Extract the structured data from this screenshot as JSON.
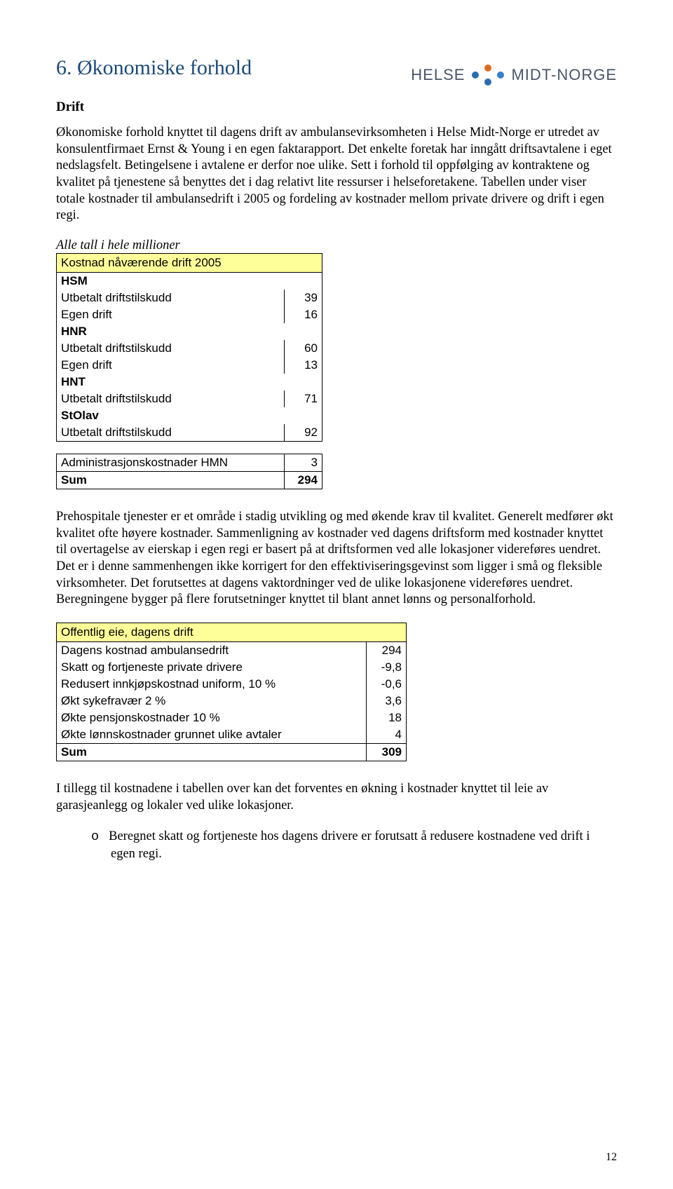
{
  "logo": {
    "left_text": "HELSE",
    "right_text": "MIDT-NORGE",
    "text_color": "#5a6472"
  },
  "colors": {
    "heading": "#1a4a7a",
    "text": "#000000",
    "table_header_bg": "#ffff99",
    "table_border": "#000000",
    "background": "#ffffff"
  },
  "heading": "6. Økonomiske forhold",
  "subheading": "Drift",
  "para1": "Økonomiske forhold knyttet til dagens drift av ambulansevirksomheten i Helse Midt-Norge er utredet av konsulentfirmaet Ernst & Young i en egen faktarapport. Det enkelte foretak har inngått driftsavtalene i eget nedslagsfelt. Betingelsene i avtalene er derfor noe ulike. Sett i forhold til oppfølging av kontraktene og kvalitet på tjenestene så benyttes det i dag relativt lite ressurser i helseforetakene. Tabellen under viser totale kostnader til ambulansedrift i 2005 og fordeling av kostnader mellom private drivere og drift i egen regi.",
  "caption1": "Alle tall i hele millioner",
  "table1": {
    "header": "Kostnad nåværende drift 2005",
    "rows": [
      {
        "type": "section",
        "label": "HSM"
      },
      {
        "type": "data",
        "label": "Utbetalt driftstilskudd",
        "value": "39"
      },
      {
        "type": "data",
        "label": "Egen drift",
        "value": "16"
      },
      {
        "type": "section",
        "label": "HNR"
      },
      {
        "type": "data",
        "label": "Utbetalt driftstilskudd",
        "value": "60"
      },
      {
        "type": "data",
        "label": "Egen drift",
        "value": "13"
      },
      {
        "type": "section",
        "label": "HNT"
      },
      {
        "type": "data",
        "label": "Utbetalt driftstilskudd",
        "value": "71"
      },
      {
        "type": "section",
        "label": "StOlav"
      },
      {
        "type": "data",
        "label": "Utbetalt driftstilskudd",
        "value": "92",
        "last_in_block": true
      },
      {
        "type": "spacer"
      },
      {
        "type": "data",
        "label": "Administrasjonskostnader HMN",
        "value": "3",
        "top_border": true
      },
      {
        "type": "sum",
        "label": "Sum",
        "value": "294"
      }
    ]
  },
  "para2": "Prehospitale tjenester er et område i stadig utvikling og med økende krav til kvalitet. Generelt medfører økt kvalitet ofte høyere kostnader. Sammenligning av kostnader ved dagens driftsform med kostnader knyttet til overtagelse av eierskap i egen regi er basert på at driftsformen ved alle lokasjoner videreføres uendret.  Det er i denne sammenhengen ikke korrigert for den effektiviseringsgevinst som ligger i små og fleksible virksomheter. Det forutsettes at dagens vaktordninger ved de ulike lokasjonene videreføres uendret. Beregningene bygger på flere forutsetninger knyttet til blant annet lønns og personalforhold.",
  "table2": {
    "header": "Offentlig eie, dagens drift",
    "rows": [
      {
        "label": "Dagens kostnad ambulansedrift",
        "value": "294"
      },
      {
        "label": "Skatt og fortjeneste private drivere",
        "value": "-9,8"
      },
      {
        "label": "Redusert innkjøpskostnad uniform, 10 %",
        "value": "-0,6"
      },
      {
        "label": "Økt sykefravær 2 %",
        "value": "3,6"
      },
      {
        "label": "Økte pensjonskostnader 10 %",
        "value": "18"
      },
      {
        "label": "Økte lønnskostnader grunnet ulike avtaler",
        "value": "4"
      }
    ],
    "sum": {
      "label": "Sum",
      "value": "309"
    }
  },
  "para3": "I tillegg til kostnadene i tabellen over kan det forventes en økning i kostnader knyttet til leie av garasjeanlegg og lokaler ved ulike lokasjoner.",
  "bullet1": "Beregnet skatt og fortjeneste hos dagens drivere er forutsatt å redusere kostnadene ved drift i egen regi.",
  "page_number": "12"
}
